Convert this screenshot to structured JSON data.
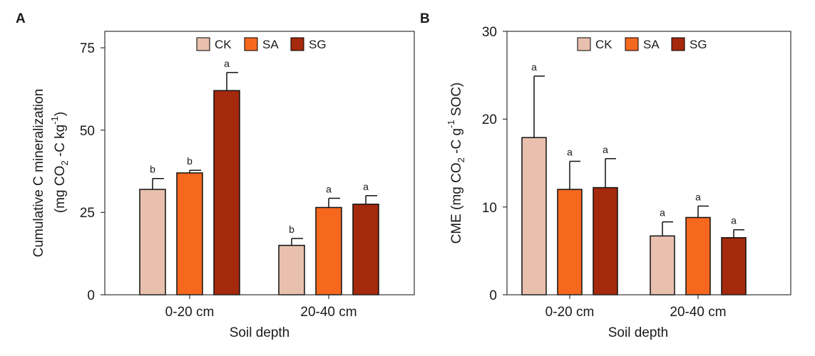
{
  "chart_data": [
    {
      "type": "bar",
      "panel_label": "A",
      "categories": [
        "0-20 cm",
        "20-40 cm"
      ],
      "series": [
        {
          "name": "CK",
          "color": "#e8c0ad",
          "values": [
            32,
            15
          ],
          "errors": [
            3.3,
            2.1
          ],
          "letters": [
            "b",
            "b"
          ]
        },
        {
          "name": "SA",
          "color": "#f7681f",
          "values": [
            37,
            26.5
          ],
          "errors": [
            0.8,
            2.8
          ],
          "letters": [
            "b",
            "a"
          ]
        },
        {
          "name": "SG",
          "color": "#a5290c",
          "values": [
            62,
            27.5
          ],
          "errors": [
            5.5,
            2.6
          ],
          "letters": [
            "a",
            "a"
          ]
        }
      ],
      "xlabel": "Soil depth",
      "ylabel_line1": "Cumulative C mineralization",
      "ylabel_line2": {
        "pre": "(mg CO",
        "sub": "2",
        "mid": " -C kg",
        "sup": "-1",
        "post": ")"
      },
      "ylim": [
        0,
        80
      ],
      "yticks": [
        "0",
        "25",
        "50",
        "75"
      ],
      "legend": [
        "CK",
        "SA",
        "SG"
      ]
    },
    {
      "type": "bar",
      "panel_label": "B",
      "categories": [
        "0-20 cm",
        "20-40 cm"
      ],
      "series": [
        {
          "name": "CK",
          "color": "#e8c0ad",
          "values": [
            17.9,
            6.7
          ],
          "errors": [
            7.0,
            1.6
          ],
          "letters": [
            "a",
            "a"
          ]
        },
        {
          "name": "SA",
          "color": "#f7681f",
          "values": [
            12,
            8.8
          ],
          "errors": [
            3.2,
            1.3
          ],
          "letters": [
            "a",
            "a"
          ]
        },
        {
          "name": "SG",
          "color": "#a5290c",
          "values": [
            12.2,
            6.5
          ],
          "errors": [
            3.3,
            0.9
          ],
          "letters": [
            "a",
            "a"
          ]
        }
      ],
      "xlabel": "Soil depth",
      "ylabel": {
        "pre": "CME (mg CO",
        "sub": "2",
        "mid": " -C g",
        "sup": "-1",
        "post": " SOC)"
      },
      "ylim": [
        0,
        30
      ],
      "yticks": [
        "0",
        "10",
        "20",
        "30"
      ],
      "legend": [
        "CK",
        "SA",
        "SG"
      ]
    }
  ]
}
